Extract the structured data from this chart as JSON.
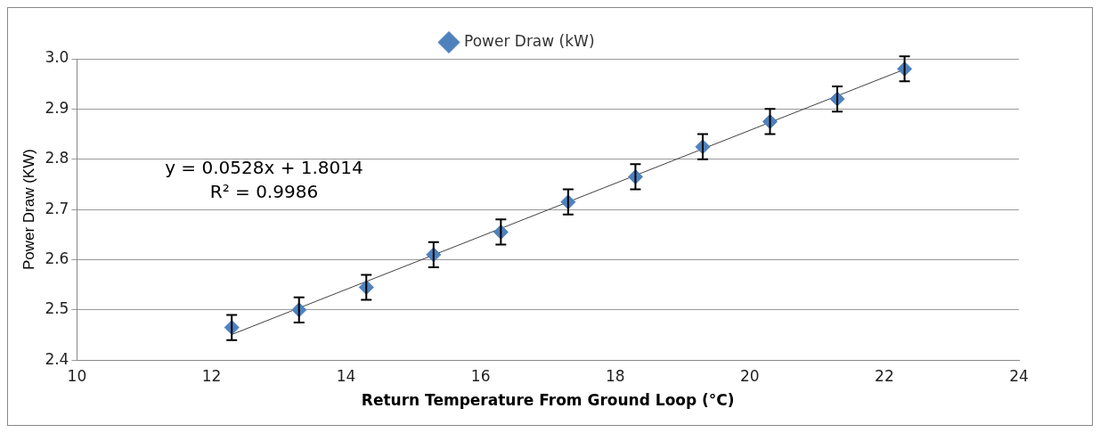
{
  "chart_data": {
    "type": "scatter",
    "xlabel": "Return Temperature From Ground Loop (°C)",
    "ylabel": "Power Draw (KW)",
    "series": [
      {
        "name": "Power Draw (kW)",
        "color": "#4f81bd",
        "x": [
          12.3,
          13.3,
          14.3,
          15.3,
          16.3,
          17.3,
          18.3,
          19.3,
          20.3,
          21.3,
          22.3
        ],
        "values": [
          2.465,
          2.5,
          2.545,
          2.61,
          2.655,
          2.715,
          2.765,
          2.825,
          2.875,
          2.92,
          2.98
        ],
        "errors": [
          0.025,
          0.025,
          0.025,
          0.025,
          0.025,
          0.025,
          0.025,
          0.025,
          0.025,
          0.025,
          0.025
        ],
        "marker": "diamond"
      },
      {
        "type": "line",
        "color": "#404040",
        "x": [
          12.3,
          22.3
        ],
        "values": [
          2.451,
          2.979
        ],
        "marker": "none"
      }
    ],
    "annotations": [
      "y = 0.0528x + 1.8014",
      "R² = 0.9986"
    ],
    "xlim": [
      10,
      24
    ],
    "xticks": [
      10,
      12,
      14,
      16,
      18,
      20,
      22,
      24
    ],
    "ylim": [
      2.4,
      3.0
    ],
    "yticks": [
      2.4,
      2.5,
      2.6,
      2.7,
      2.8,
      2.9,
      {
        "value": 3,
        "label": "3.0"
      }
    ],
    "grid": "y",
    "legend": "top"
  }
}
